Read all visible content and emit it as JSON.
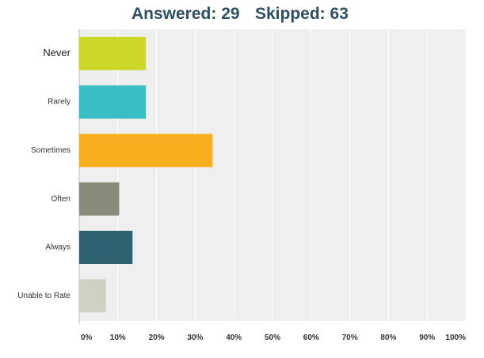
{
  "header": {
    "answered_label": "Answered:",
    "answered_value": "29",
    "skipped_label": "Skipped:",
    "skipped_value": "63"
  },
  "chart_data": {
    "type": "bar",
    "orientation": "horizontal",
    "categories": [
      "Never",
      "Rarely",
      "Sometimes",
      "Often",
      "Always",
      "Unable to Rate"
    ],
    "values": [
      17.24,
      17.24,
      34.48,
      10.34,
      13.79,
      6.9
    ],
    "colors": [
      "#cdd72a",
      "#36bec2",
      "#f6ae1f",
      "#898a78",
      "#2e6271",
      "#d0d1c2"
    ],
    "xlim": [
      0,
      100
    ],
    "xticks": [
      "0%",
      "10%",
      "20%",
      "30%",
      "40%",
      "50%",
      "60%",
      "70%",
      "80%",
      "90%",
      "100%"
    ],
    "grid": true,
    "plot_background": "#efefef",
    "grid_color": "#ffffff"
  }
}
